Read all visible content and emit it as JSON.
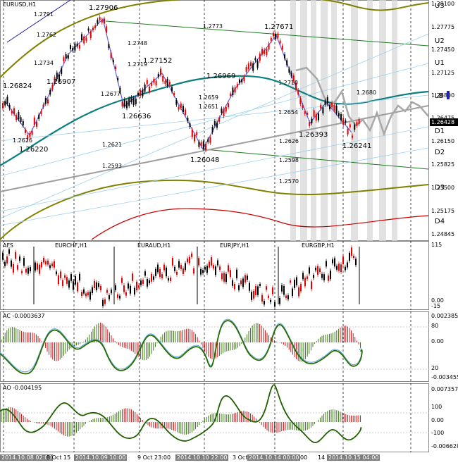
{
  "main": {
    "title": "EURUSD,H1",
    "current_price": "1.26428",
    "axis_ticks": [
      "1.28100",
      "1.27775",
      "1.27450",
      "1.27125",
      "1.26800",
      "1.26475",
      "1.26150",
      "1.25825",
      "1.25500",
      "1.25175",
      "1.24845"
    ],
    "zones": [
      "U3",
      "U2",
      "U1",
      "LB",
      "D1",
      "D2",
      "D3",
      "D4"
    ],
    "swing_labels": [
      "1.26824",
      "1.26907",
      "1.27906",
      "1.27152",
      "1.26636",
      "1.26969",
      "1.27671",
      "1.26220",
      "1.26048",
      "1.26393",
      "1.26241"
    ],
    "level_labels": [
      "1.2791",
      "1.2762",
      "1.2748",
      "1.2734",
      "1.2719",
      "1.2677",
      "1.2773",
      "1.2710",
      "1.2659",
      "1.2651",
      "1.2654",
      "1.2680",
      "1.2626",
      "1.2621",
      "1.2626",
      "1.2593",
      "1.2598",
      "1.2570"
    ],
    "colors": {
      "bull": "#000000",
      "bear": "#e60000",
      "band_outer": "#808000",
      "band_mid": "#0b7f7f",
      "trend": "#9e9e9e",
      "zigzag": "#6666ee"
    }
  },
  "pairs": {
    "title": "AFS",
    "symbols": [
      "EURCHF,H1",
      "EURAUD,H1",
      "EURJPY,H1",
      "EURGBP,H1"
    ],
    "axis_ticks": [
      "115",
      "0.00",
      "-15"
    ]
  },
  "ac": {
    "title": "AC -0.0003637",
    "axis_ticks": [
      "0.002385",
      "80",
      "0.00",
      "20",
      "-0.003455"
    ]
  },
  "ao": {
    "title": "AO -0.004195",
    "axis_ticks": [
      "0.007357",
      "100",
      "0.00",
      "-100",
      "-0.006628"
    ]
  },
  "time_axis": [
    {
      "label": "2014.10.08 02:00",
      "hl": true
    },
    {
      "label": "8 Oct 15",
      "hl": false
    },
    {
      "label": "2014.10.09 10:00",
      "hl": true
    },
    {
      "label": "9 Oct 23:00",
      "hl": false
    },
    {
      "label": "2014.10.10 22:00",
      "hl": true
    },
    {
      "label": "3 Oct",
      "hl": false
    },
    {
      "label": "2014.10.14 00:00",
      "hl": true
    },
    {
      "label": "00",
      "hl": false
    },
    {
      "label": "14",
      "hl": false
    },
    {
      "label": "2014.10.15 04:00",
      "hl": true
    }
  ]
}
